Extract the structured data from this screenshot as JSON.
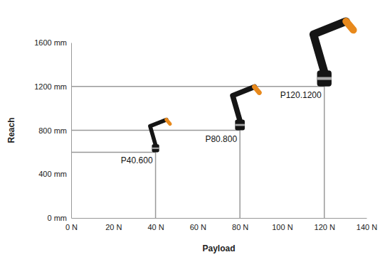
{
  "chart_data": {
    "type": "scatter",
    "x_label": "Payload",
    "y_label": "Reach",
    "x": [
      40,
      80,
      120
    ],
    "values": [
      600,
      800,
      1200
    ],
    "labels": [
      "P40.600",
      "P80.800",
      "P120.1200"
    ],
    "color": "#999999",
    "grid": false,
    "xlim": [
      0,
      140
    ],
    "xticks": [
      {
        "value": 0,
        "label": "0 N"
      },
      {
        "value": 20,
        "label": "20 N"
      },
      {
        "value": 40,
        "label": "40 N"
      },
      {
        "value": 60,
        "label": "60 N"
      },
      {
        "value": 80,
        "label": "80 N"
      },
      {
        "value": 100,
        "label": "100 N"
      },
      {
        "value": 120,
        "label": "120 N"
      },
      {
        "value": 140,
        "label": "140 N"
      }
    ],
    "ylim": [
      0,
      1600
    ],
    "yticks": [
      {
        "value": 0,
        "label": "0 mm"
      },
      {
        "value": 400,
        "label": "400 mm"
      },
      {
        "value": 800,
        "label": "800 mm"
      },
      {
        "value": 1200,
        "label": "1200 mm"
      },
      {
        "value": 1600,
        "label": "1600 mm"
      }
    ]
  }
}
